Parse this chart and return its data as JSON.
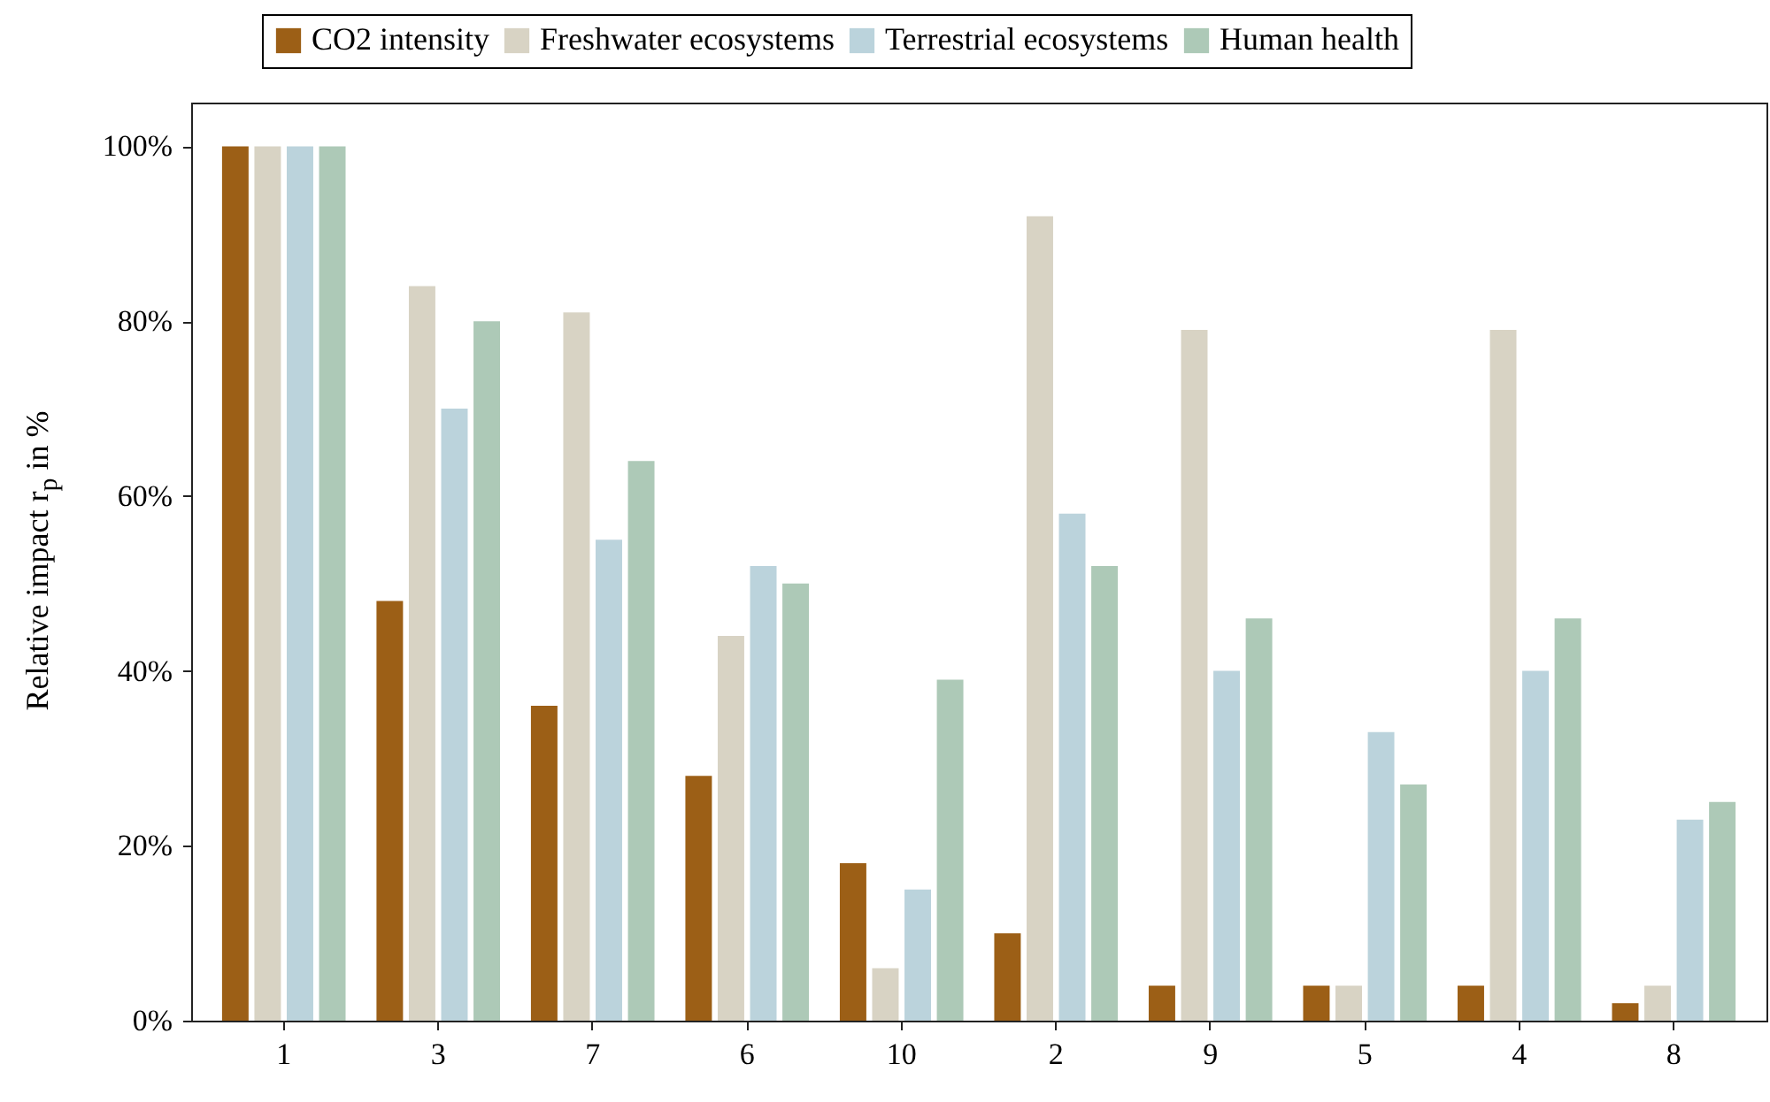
{
  "chart_data": {
    "type": "bar",
    "ylabel": "Relative impact r$_{p}$ in %",
    "categories": [
      "1",
      "3",
      "7",
      "6",
      "10",
      "2",
      "9",
      "5",
      "4",
      "8"
    ],
    "series": [
      {
        "name": "CO2 intensity",
        "color": "#9c5f16",
        "values": [
          100,
          48,
          36,
          28,
          18,
          10,
          4,
          4,
          4,
          2
        ]
      },
      {
        "name": "Freshwater ecosystems",
        "color": "#d8d3c4",
        "values": [
          100,
          84,
          81,
          44,
          6,
          92,
          79,
          4,
          79,
          4
        ]
      },
      {
        "name": "Terrestrial ecosystems",
        "color": "#bbd3dc",
        "values": [
          100,
          70,
          55,
          52,
          15,
          58,
          40,
          33,
          40,
          23
        ]
      },
      {
        "name": "Human health",
        "color": "#adc9b7",
        "values": [
          100,
          80,
          64,
          50,
          39,
          52,
          46,
          27,
          46,
          25
        ]
      }
    ],
    "ylim": [
      0,
      105
    ],
    "yticks": [
      {
        "value": 0,
        "label": "0%"
      },
      {
        "value": 20,
        "label": "20%"
      },
      {
        "value": 40,
        "label": "40%"
      },
      {
        "value": 60,
        "label": "60%"
      },
      {
        "value": 80,
        "label": "80%"
      },
      {
        "value": 100,
        "label": "100%"
      }
    ],
    "grid": false,
    "legend": "top"
  }
}
